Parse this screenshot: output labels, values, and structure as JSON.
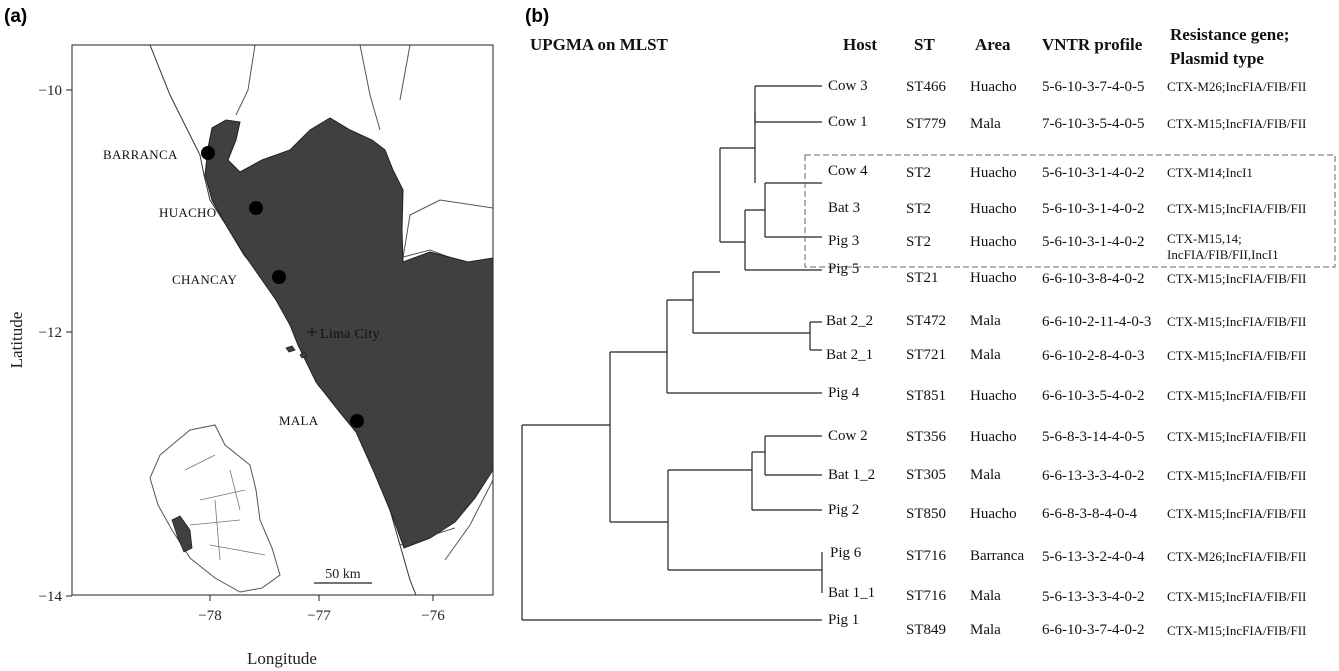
{
  "panel_a": {
    "label": "(a)",
    "x_axis_label": "Longitude",
    "y_axis_label": "Latitude",
    "x_ticks": [
      "−78",
      "−77",
      "−76"
    ],
    "y_ticks": [
      "−10",
      "−12",
      "−14"
    ],
    "towns": [
      {
        "name": "BARRANCA"
      },
      {
        "name": "HUACHO"
      },
      {
        "name": "CHANCAY"
      },
      {
        "name": "MALA"
      }
    ],
    "city_label": "Lima City",
    "scale_bar": "50 km",
    "colors": {
      "region_fill": "#404040",
      "borders": "#555555",
      "site_marker": "#000000"
    }
  },
  "panel_b": {
    "label": "(b)",
    "tree_title": "UPGMA on MLST",
    "headers": {
      "host": "Host",
      "st": "ST",
      "area": "Area",
      "vntr": "VNTR profile",
      "resistance_line1": "Resistance gene;",
      "resistance_line2": "Plasmid type"
    },
    "rows": [
      {
        "host": "Cow 3",
        "st": "ST466",
        "area": "Huacho",
        "vntr": "5-6-10-3-7-4-0-5",
        "resistance": "CTX-M26;IncFIA/FIB/FII"
      },
      {
        "host": "Cow 1",
        "st": "ST779",
        "area": "Mala",
        "vntr": "7-6-10-3-5-4-0-5",
        "resistance": "CTX-M15;IncFIA/FIB/FII"
      },
      {
        "host": "Cow 4",
        "st": "ST2",
        "area": "Huacho",
        "vntr": "5-6-10-3-1-4-0-2",
        "resistance": "CTX-M14;IncI1"
      },
      {
        "host": "Bat 3",
        "st": "ST2",
        "area": "Huacho",
        "vntr": "5-6-10-3-1-4-0-2",
        "resistance": "CTX-M15;IncFIA/FIB/FII"
      },
      {
        "host": "Pig 3",
        "st": "ST2",
        "area": "Huacho",
        "vntr": "5-6-10-3-1-4-0-2",
        "resistance_line1": "CTX-M15,14;",
        "resistance_line2": "IncFIA/FIB/FII,IncI1"
      },
      {
        "host": "Pig 5",
        "st": "ST21",
        "area": "Huacho",
        "vntr": "6-6-10-3-8-4-0-2",
        "resistance": "CTX-M15;IncFIA/FIB/FII"
      },
      {
        "host": "Bat 2_2",
        "st": "ST472",
        "area": "Mala",
        "vntr": "6-6-10-2-11-4-0-3",
        "resistance": "CTX-M15;IncFIA/FIB/FII"
      },
      {
        "host": "Bat 2_1",
        "st": "ST721",
        "area": "Mala",
        "vntr": "6-6-10-2-8-4-0-3",
        "resistance": "CTX-M15;IncFIA/FIB/FII"
      },
      {
        "host": "Pig 4",
        "st": "ST851",
        "area": "Huacho",
        "vntr": "6-6-10-3-5-4-0-2",
        "resistance": "CTX-M15;IncFIA/FIB/FII"
      },
      {
        "host": "Cow 2",
        "st": "ST356",
        "area": "Huacho",
        "vntr": "5-6-8-3-14-4-0-5",
        "resistance": "CTX-M15;IncFIA/FIB/FII"
      },
      {
        "host": "Bat 1_2",
        "st": "ST305",
        "area": "Mala",
        "vntr": "6-6-13-3-3-4-0-2",
        "resistance": "CTX-M15;IncFIA/FIB/FII"
      },
      {
        "host": "Pig 2",
        "st": "ST850",
        "area": "Huacho",
        "vntr": "6-6-8-3-8-4-0-4",
        "resistance": "CTX-M15;IncFIA/FIB/FII"
      },
      {
        "host": "Pig 6",
        "st": "ST716",
        "area": "Barranca",
        "vntr": "5-6-13-3-2-4-0-4",
        "resistance": "CTX-M26;IncFIA/FIB/FII"
      },
      {
        "host": "Bat 1_1",
        "st": "ST716",
        "area": "Mala",
        "vntr": "5-6-13-3-3-4-0-2",
        "resistance": "CTX-M15;IncFIA/FIB/FII"
      },
      {
        "host": "Pig 1",
        "st": "ST849",
        "area": "Mala",
        "vntr": "6-6-10-3-7-4-0-2",
        "resistance": "CTX-M15;IncFIA/FIB/FII"
      }
    ]
  }
}
